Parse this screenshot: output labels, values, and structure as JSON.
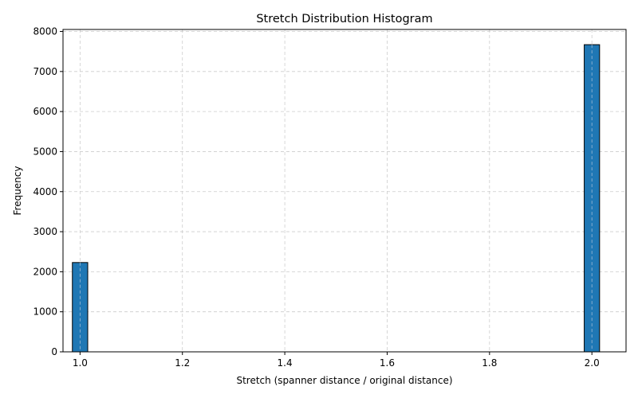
{
  "chart_data": {
    "type": "bar",
    "title": "Stretch Distribution Histogram",
    "xlabel": "Stretch (spanner distance / original distance)",
    "ylabel": "Frequency",
    "xlim": [
      0.9667,
      2.0667
    ],
    "ylim": [
      0,
      8050
    ],
    "xticks": [
      1.0,
      1.2,
      1.4,
      1.6,
      1.8,
      2.0
    ],
    "xtick_labels": [
      "1.0",
      "1.2",
      "1.4",
      "1.6",
      "1.8",
      "2.0"
    ],
    "yticks": [
      0,
      1000,
      2000,
      3000,
      4000,
      5000,
      6000,
      7000,
      8000
    ],
    "ytick_labels": [
      "0",
      "1000",
      "2000",
      "3000",
      "4000",
      "5000",
      "6000",
      "7000",
      "8000"
    ],
    "bin_width": 0.03,
    "bins": [
      {
        "x0": 0.985,
        "x1": 1.015,
        "value": 2230
      },
      {
        "x0": 1.985,
        "x1": 2.015,
        "value": 7670
      }
    ],
    "grid": true,
    "legend": false,
    "bar_color": "#1f77b4",
    "edge_color": "#000000",
    "grid_color": "#cccccc"
  }
}
